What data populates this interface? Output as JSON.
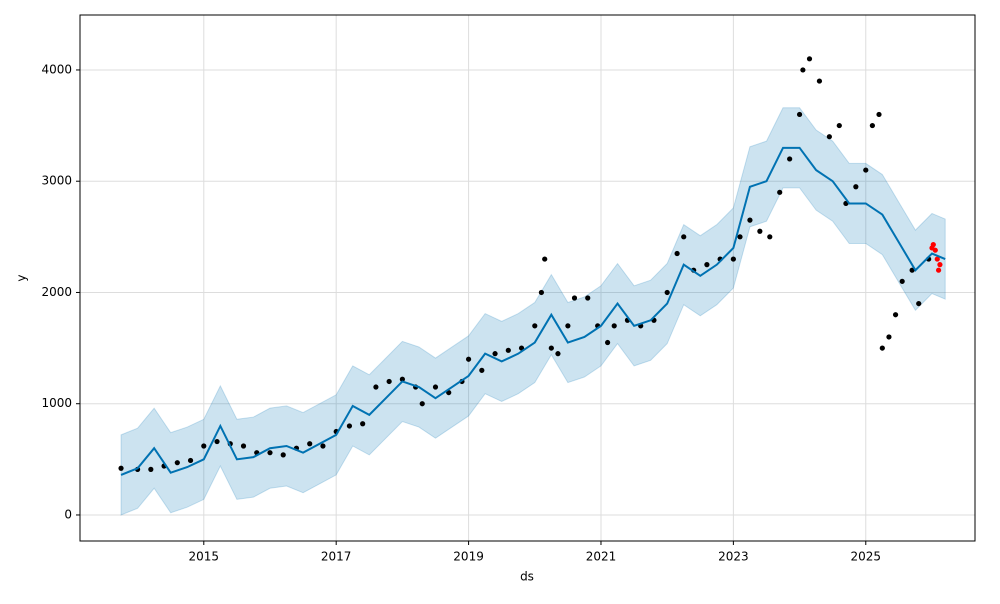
{
  "chart_data": {
    "type": "forecast",
    "xlabel": "ds",
    "ylabel": "y",
    "xlim": [
      2013.13,
      2026.65
    ],
    "ylim": [
      -234,
      4494
    ],
    "xticks": [
      2015,
      2017,
      2019,
      2021,
      2023,
      2025
    ],
    "yticks": [
      0,
      1000,
      2000,
      3000,
      4000
    ],
    "grid": true,
    "forecast": {
      "line_color": "#0072b2",
      "band_color": "#0072b2",
      "x": [
        2013.75,
        2014,
        2014.25,
        2014.5,
        2014.75,
        2015,
        2015.25,
        2015.5,
        2015.75,
        2016,
        2016.25,
        2016.5,
        2016.75,
        2017,
        2017.25,
        2017.5,
        2017.75,
        2018,
        2018.25,
        2018.5,
        2018.75,
        2019,
        2019.25,
        2019.5,
        2019.75,
        2020,
        2020.25,
        2020.5,
        2020.75,
        2021,
        2021.25,
        2021.5,
        2021.75,
        2022,
        2022.25,
        2022.5,
        2022.75,
        2023,
        2023.25,
        2023.5,
        2023.75,
        2024,
        2024.25,
        2024.5,
        2024.75,
        2025,
        2025.25,
        2025.5,
        2025.75,
        2026,
        2026.2
      ],
      "yhat": [
        360,
        420,
        600,
        380,
        430,
        500,
        800,
        500,
        520,
        600,
        620,
        560,
        640,
        720,
        980,
        900,
        1050,
        1200,
        1150,
        1050,
        1150,
        1250,
        1450,
        1380,
        1450,
        1550,
        1800,
        1550,
        1600,
        1700,
        1900,
        1700,
        1750,
        1900,
        2250,
        2150,
        2250,
        2400,
        2950,
        3000,
        3300,
        3300,
        3100,
        3000,
        2800,
        2800,
        2700,
        2450,
        2200,
        2350,
        2300
      ],
      "yhat_upper": [
        720,
        780,
        960,
        740,
        790,
        860,
        1160,
        860,
        880,
        960,
        980,
        920,
        1000,
        1080,
        1340,
        1260,
        1410,
        1560,
        1510,
        1410,
        1510,
        1610,
        1810,
        1740,
        1810,
        1910,
        2160,
        1910,
        1960,
        2060,
        2260,
        2060,
        2110,
        2260,
        2610,
        2510,
        2610,
        2760,
        3310,
        3360,
        3660,
        3660,
        3460,
        3360,
        3160,
        3160,
        3060,
        2810,
        2560,
        2710,
        2660
      ],
      "yhat_lower": [
        0,
        60,
        240,
        20,
        70,
        140,
        440,
        140,
        160,
        240,
        260,
        200,
        280,
        360,
        620,
        540,
        690,
        840,
        790,
        690,
        790,
        890,
        1090,
        1020,
        1090,
        1190,
        1440,
        1190,
        1240,
        1340,
        1540,
        1340,
        1390,
        1540,
        1890,
        1790,
        1890,
        2040,
        2590,
        2640,
        2940,
        2940,
        2740,
        2640,
        2440,
        2440,
        2340,
        2090,
        1840,
        1990,
        1940
      ]
    },
    "observed": {
      "color": "#000000",
      "x": [
        2013.75,
        2014,
        2014.2,
        2014.4,
        2014.6,
        2014.8,
        2015,
        2015.2,
        2015.4,
        2015.6,
        2015.8,
        2016,
        2016.2,
        2016.4,
        2016.6,
        2016.8,
        2017,
        2017.2,
        2017.4,
        2017.6,
        2017.8,
        2018,
        2018.2,
        2018.3,
        2018.5,
        2018.7,
        2018.9,
        2019,
        2019.2,
        2019.4,
        2019.6,
        2019.8,
        2020,
        2020.1,
        2020.15,
        2020.25,
        2020.35,
        2020.5,
        2020.6,
        2020.8,
        2020.95,
        2021.1,
        2021.2,
        2021.4,
        2021.6,
        2021.8,
        2022,
        2022.15,
        2022.25,
        2022.4,
        2022.6,
        2022.8,
        2023,
        2023.1,
        2023.25,
        2023.4,
        2023.55,
        2023.7,
        2023.85,
        2024,
        2024.05,
        2024.15,
        2024.3,
        2024.45,
        2024.6,
        2024.7,
        2024.85,
        2025,
        2025.1,
        2025.2,
        2025.25,
        2025.35,
        2025.45,
        2025.55,
        2025.7,
        2025.8,
        2025.95
      ],
      "values": [
        420,
        410,
        410,
        440,
        470,
        490,
        620,
        660,
        640,
        620,
        560,
        560,
        540,
        600,
        640,
        620,
        750,
        800,
        820,
        1150,
        1200,
        1220,
        1150,
        1000,
        1150,
        1100,
        1200,
        1400,
        1300,
        1450,
        1480,
        1500,
        1700,
        2000,
        2300,
        1500,
        1450,
        1700,
        1950,
        1950,
        1700,
        1550,
        1700,
        1750,
        1700,
        1750,
        2000,
        2350,
        2500,
        2200,
        2250,
        2300,
        2300,
        2500,
        2650,
        2550,
        2500,
        2900,
        3200,
        3600,
        4000,
        4100,
        3900,
        3400,
        3500,
        2800,
        2950,
        3100,
        3500,
        3600,
        1500,
        1600,
        1800,
        2100,
        2200,
        1900,
        2300
      ]
    },
    "recent": {
      "color": "#ff0000",
      "x": [
        2026.0,
        2026.02,
        2026.05,
        2026.08,
        2026.1,
        2026.12
      ],
      "values": [
        2400,
        2430,
        2380,
        2300,
        2200,
        2250
      ]
    }
  }
}
